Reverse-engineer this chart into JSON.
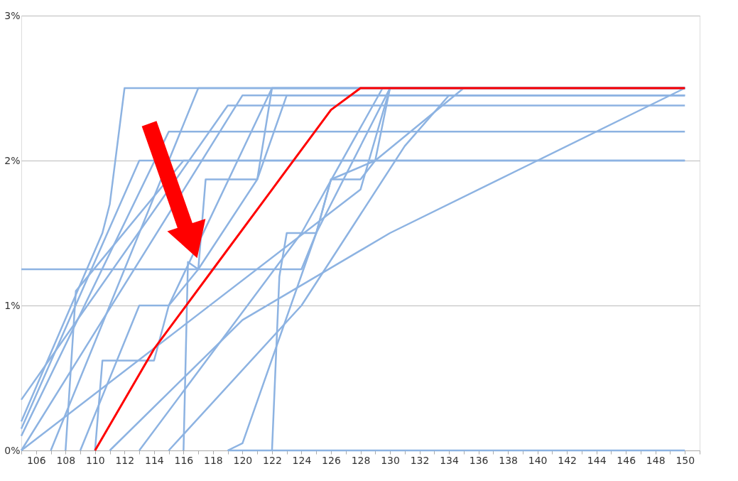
{
  "chart_data": {
    "type": "line",
    "xlim": [
      105,
      151
    ],
    "xticks": [
      {
        "value": 105,
        "label": null
      },
      106,
      {
        "value": 107,
        "label": null
      },
      108,
      {
        "value": 109,
        "label": null
      },
      110,
      {
        "value": 111,
        "label": null
      },
      112,
      {
        "value": 113,
        "label": null
      },
      114,
      {
        "value": 115,
        "label": null
      },
      116,
      {
        "value": 117,
        "label": null
      },
      118,
      {
        "value": 119,
        "label": null
      },
      120,
      {
        "value": 121,
        "label": null
      },
      122,
      {
        "value": 123,
        "label": null
      },
      124,
      {
        "value": 125,
        "label": null
      },
      126,
      {
        "value": 127,
        "label": null
      },
      128,
      {
        "value": 129,
        "label": null
      },
      130,
      {
        "value": 131,
        "label": null
      },
      132,
      {
        "value": 133,
        "label": null
      },
      134,
      {
        "value": 135,
        "label": null
      },
      136,
      {
        "value": 137,
        "label": null
      },
      138,
      {
        "value": 139,
        "label": null
      },
      140,
      {
        "value": 141,
        "label": null
      },
      142,
      {
        "value": 143,
        "label": null
      },
      144,
      {
        "value": 145,
        "label": null
      },
      146,
      {
        "value": 147,
        "label": null
      },
      148,
      {
        "value": 149,
        "label": null
      },
      150,
      {
        "value": 151,
        "label": null
      }
    ],
    "ylim": [
      0,
      3
    ],
    "yticks": [
      {
        "value": 0,
        "label": "0%"
      },
      {
        "value": 1,
        "label": "1%"
      },
      {
        "value": 2,
        "label": "2%"
      },
      {
        "value": 3,
        "label": "3%"
      }
    ],
    "grid": "y",
    "marker": "none",
    "line_style": "solid",
    "series": [
      {
        "color": "#8db3e2",
        "x": [
          105,
          110.5,
          111,
          112,
          150
        ],
        "values": [
          0.2,
          1.5,
          1.7,
          2.5,
          2.5
        ]
      },
      {
        "color": "#8db3e2",
        "x": [
          105,
          124,
          125,
          126,
          128,
          129,
          130,
          150
        ],
        "values": [
          1.25,
          1.25,
          1.5,
          1.87,
          1.87,
          2.0,
          2.5,
          2.5
        ]
      },
      {
        "color": "#8db3e2",
        "x": [
          105,
          113,
          150
        ],
        "values": [
          0.15,
          2.0,
          2.0
        ]
      },
      {
        "color": "#8db3e2",
        "x": [
          105,
          115,
          150
        ],
        "values": [
          0.1,
          2.2,
          2.2
        ]
      },
      {
        "color": "#8db3e2",
        "x": [
          105,
          119,
          150
        ],
        "values": [
          0.35,
          2.38,
          2.38
        ]
      },
      {
        "color": "#8db3e2",
        "x": [
          105,
          120,
          150
        ],
        "values": [
          0,
          2.45,
          2.45
        ]
      },
      {
        "color": "#8db3e2",
        "x": [
          107,
          117,
          150
        ],
        "values": [
          0,
          2.5,
          2.5
        ]
      },
      {
        "color": "#8db3e2",
        "x": [
          110,
          110.5,
          114,
          115,
          117,
          117.5,
          121,
          122,
          150
        ],
        "values": [
          0,
          0.62,
          0.62,
          1.0,
          1.25,
          1.87,
          1.87,
          2.5,
          2.5
        ]
      },
      {
        "color": "#8db3e2",
        "x": [
          108,
          108.7,
          116,
          117,
          126,
          130,
          150
        ],
        "values": [
          0,
          1.1,
          2.0,
          2.0,
          2.0,
          2.0,
          2.0
        ]
      },
      {
        "color": "#8db3e2",
        "x": [
          109,
          113,
          115,
          122,
          150
        ],
        "values": [
          0,
          1.0,
          1.0,
          2.5,
          2.5
        ]
      },
      {
        "color": "#8db3e2",
        "x": [
          116,
          116.3,
          117,
          121,
          123,
          150
        ],
        "values": [
          0,
          1.3,
          1.25,
          1.87,
          2.45,
          2.45
        ]
      },
      {
        "color": "#8db3e2",
        "x": [
          113,
          124,
          129.5,
          150
        ],
        "values": [
          0,
          1.5,
          2.5,
          2.5
        ]
      },
      {
        "color": "#8db3e2",
        "x": [
          119,
          120,
          125,
          126,
          129,
          135,
          150
        ],
        "values": [
          0,
          0.05,
          1.5,
          1.87,
          2.0,
          2.5,
          2.5
        ]
      },
      {
        "color": "#8db3e2",
        "x": [
          122,
          122.5,
          123,
          125,
          130,
          150
        ],
        "values": [
          0,
          1.2,
          1.5,
          1.5,
          2.5,
          2.5
        ]
      },
      {
        "color": "#8db3e2",
        "x": [
          115,
          124,
          131,
          134,
          150
        ],
        "values": [
          0,
          1.0,
          2.1,
          2.45,
          2.45
        ]
      },
      {
        "color": "#8db3e2",
        "x": [
          111,
          120,
          130,
          140,
          150
        ],
        "values": [
          0,
          0.9,
          1.5,
          2.0,
          2.5
        ]
      },
      {
        "color": "#8db3e2",
        "x": [
          105,
          128,
          130,
          150
        ],
        "values": [
          0,
          1.8,
          2.5,
          2.5
        ]
      },
      {
        "color": "#8db3e2",
        "x": [
          119,
          150
        ],
        "values": [
          0,
          0
        ]
      },
      {
        "color": "#ff0000",
        "x": [
          110,
          114,
          118,
          122,
          126,
          128,
          150
        ],
        "values": [
          0,
          0.7,
          1.25,
          1.8,
          2.35,
          2.5,
          2.5
        ]
      }
    ]
  }
}
